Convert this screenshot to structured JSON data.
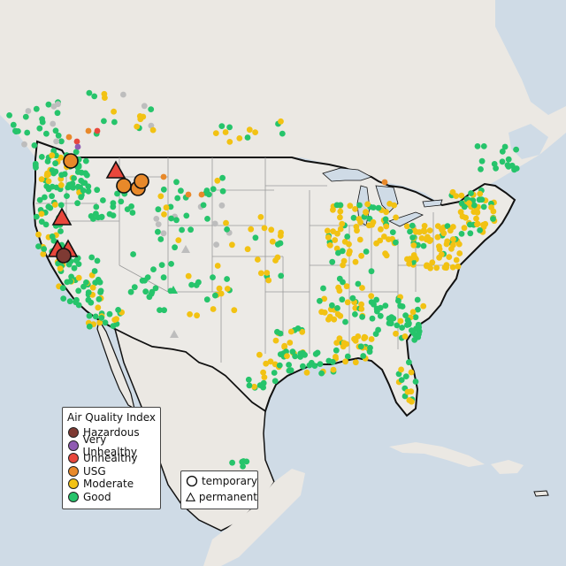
{
  "legend": {
    "title": "Air Quality Index",
    "items": [
      {
        "label": "Hazardous",
        "color": "#7e3a33"
      },
      {
        "label": "Very Unhealthy",
        "color": "#8f5bb2"
      },
      {
        "label": "Unhealthy",
        "color": "#e8473c"
      },
      {
        "label": "USG",
        "color": "#e8892a"
      },
      {
        "label": "Moderate",
        "color": "#f2c213"
      },
      {
        "label": "Good",
        "color": "#26c46b"
      }
    ]
  },
  "shape_legend": {
    "temporary": "temporary",
    "permanent": "permanent"
  },
  "colors": {
    "water": "#cfdbe6",
    "land": "#ece9e4",
    "border": "#111111",
    "state_line": "#9a9a9a",
    "no_data": "#bdbdbd"
  },
  "icons": {
    "temporary": "circle-icon",
    "permanent": "triangle-icon"
  }
}
